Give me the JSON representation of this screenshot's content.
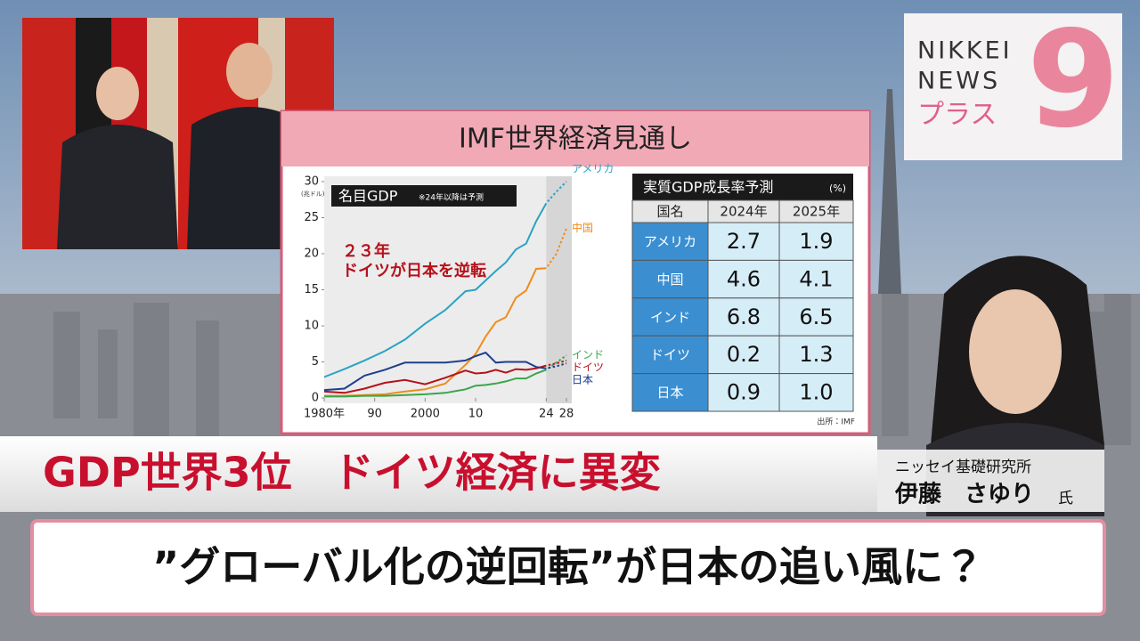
{
  "logo": {
    "line1": "NIKKEI",
    "line2": "NEWS",
    "line3": "プラス",
    "number": "9"
  },
  "panel_title": "IMF世界経済見通し",
  "chart_data": {
    "type": "line",
    "title": "名目GDP",
    "note": "※24年以降は予測",
    "ylabel": "(兆ドル)",
    "annotation": [
      "２３年",
      "ドイツが日本を逆転"
    ],
    "x": [
      1980,
      1984,
      1988,
      1992,
      1996,
      2000,
      2004,
      2008,
      2010,
      2012,
      2014,
      2016,
      2018,
      2020,
      2022,
      2024,
      2026,
      2028
    ],
    "series": [
      {
        "name": "アメリカ",
        "color": "#2ba3c2",
        "values": [
          2.9,
          4.0,
          5.2,
          6.5,
          8.1,
          10.3,
          12.2,
          14.8,
          15.0,
          16.3,
          17.6,
          18.8,
          20.6,
          21.4,
          24.5,
          27.0,
          28.6,
          30.0
        ]
      },
      {
        "name": "中国",
        "color": "#f08c1c",
        "values": [
          0.3,
          0.3,
          0.4,
          0.5,
          0.9,
          1.2,
          2.0,
          4.6,
          6.1,
          8.5,
          10.5,
          11.2,
          13.9,
          14.9,
          17.9,
          18.0,
          20.0,
          23.5
        ]
      },
      {
        "name": "インド",
        "color": "#3aa64a",
        "values": [
          0.2,
          0.2,
          0.3,
          0.3,
          0.4,
          0.5,
          0.7,
          1.2,
          1.7,
          1.8,
          2.0,
          2.3,
          2.7,
          2.7,
          3.4,
          3.9,
          4.9,
          5.9
        ]
      },
      {
        "name": "ドイツ",
        "color": "#b5121b",
        "values": [
          0.9,
          0.7,
          1.3,
          2.1,
          2.5,
          1.9,
          2.8,
          3.8,
          3.4,
          3.5,
          3.9,
          3.5,
          4.0,
          3.9,
          4.1,
          4.5,
          4.8,
          5.2
        ]
      },
      {
        "name": "日本",
        "color": "#1d3f8f",
        "values": [
          1.1,
          1.3,
          3.1,
          3.9,
          4.9,
          4.9,
          4.9,
          5.2,
          5.8,
          6.3,
          4.9,
          5.0,
          5.0,
          5.0,
          4.3,
          4.1,
          4.4,
          4.8
        ]
      }
    ],
    "xlim": [
      1980,
      2028
    ],
    "xticks": [
      {
        "value": 1980,
        "label": "1980年"
      },
      {
        "value": 1990,
        "label": "90"
      },
      2000,
      {
        "value": 2010,
        "label": "10"
      },
      {
        "value": 2024,
        "label": "24"
      },
      {
        "value": 2028,
        "label": "28"
      }
    ],
    "ylim": [
      0,
      30
    ],
    "yticks": [
      0,
      5,
      10,
      15,
      20,
      25,
      30
    ]
  },
  "table": {
    "title": "実質GDP成長率予測",
    "unit": "(%)",
    "header": [
      "国名",
      "2024年",
      "2025年"
    ],
    "rows": [
      [
        "アメリカ",
        "2.7",
        "1.9"
      ],
      [
        "中国",
        "4.6",
        "4.1"
      ],
      [
        "インド",
        "6.8",
        "6.5"
      ],
      [
        "ドイツ",
        "0.2",
        "1.3"
      ],
      [
        "日本",
        "0.9",
        "1.0"
      ]
    ]
  },
  "source": "出所：IMF",
  "headline": "GDP世界3位　ドイツ経済に異変",
  "speaker": {
    "affiliation": "ニッセイ基礎研究所",
    "name": "伊藤　さゆり",
    "honorific": "氏"
  },
  "subtitle": "”グローバル化の逆回転”が日本の追い風に？"
}
